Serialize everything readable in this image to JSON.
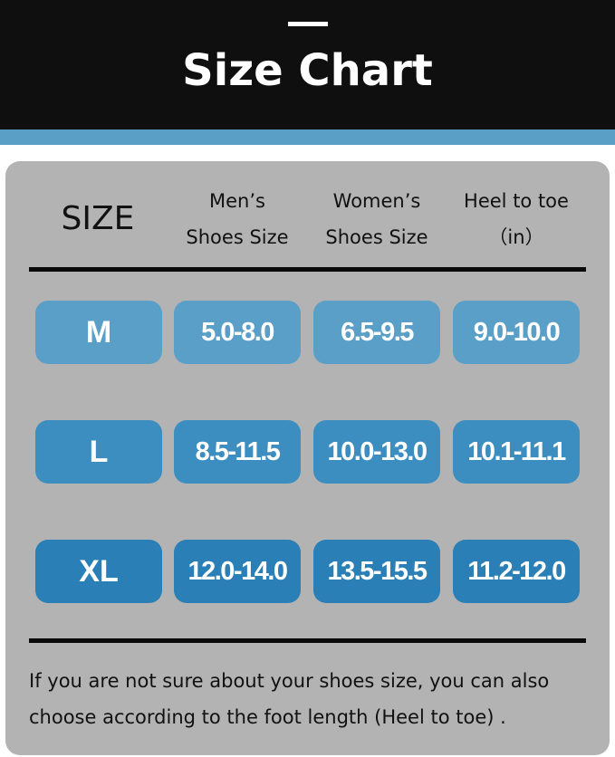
{
  "title": "Size Chart",
  "headers": {
    "size": "SIZE",
    "mens": [
      "Men’s",
      "Shoes Size"
    ],
    "womens": [
      "Women’s",
      "Shoes Size"
    ],
    "heel": [
      "Heel to toe",
      "（in）"
    ]
  },
  "rows": [
    {
      "size": "M",
      "mens": "5.0-8.0",
      "womens": "6.5-9.5",
      "heel": "9.0-10.0",
      "color": "#5a9fc8"
    },
    {
      "size": "L",
      "mens": "8.5-11.5",
      "womens": "10.0-13.0",
      "heel": "10.1-11.1",
      "color": "#3d8ec0"
    },
    {
      "size": "XL",
      "mens": "12.0-14.0",
      "womens": "13.5-15.5",
      "heel": "11.2-12.0",
      "color": "#2a7fb6"
    }
  ],
  "note": [
    "If you are not sure about your shoes size, you can also",
    "choose according to the foot length (Heel to toe) ."
  ],
  "colors": {
    "header_bg": "#0f0f0f",
    "band": "#5a9fc6",
    "card_bg": "#b3b3b3"
  }
}
